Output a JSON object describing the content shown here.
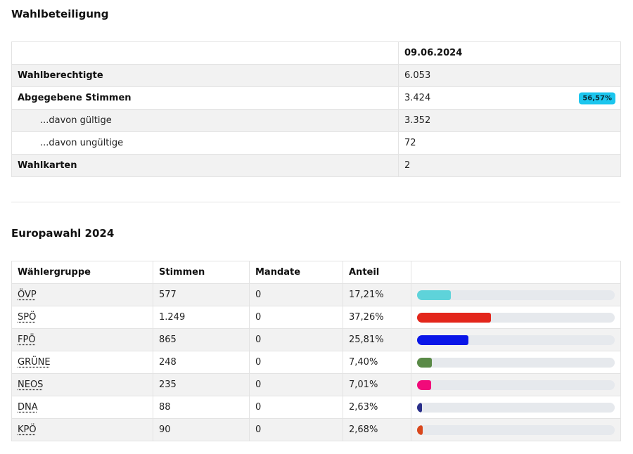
{
  "turnout": {
    "title": "Wahlbeteiligung",
    "date": "09.06.2024",
    "rows": [
      {
        "label": "Wahlberechtigte",
        "value": "6.053"
      },
      {
        "label": "Abgegebene Stimmen",
        "value": "3.424",
        "badge": "56,57%"
      },
      {
        "label": "...davon gültige",
        "value": "3.352"
      },
      {
        "label": "...davon ungültige",
        "value": "72"
      },
      {
        "label": "Wahlkarten",
        "value": "2"
      }
    ]
  },
  "results": {
    "title": "Europawahl 2024",
    "headers": [
      "Wählergruppe",
      "Stimmen",
      "Mandate",
      "Anteil",
      ""
    ],
    "rows": [
      {
        "party": "ÖVP",
        "votes": "577",
        "seats": "0",
        "share": "17,21%",
        "share_value": 17.21,
        "color": "#5ed3da"
      },
      {
        "party": "SPÖ",
        "votes": "1.249",
        "seats": "0",
        "share": "37,26%",
        "share_value": 37.26,
        "color": "#e3261b"
      },
      {
        "party": "FPÖ",
        "votes": "865",
        "seats": "0",
        "share": "25,81%",
        "share_value": 25.81,
        "color": "#0a16e8"
      },
      {
        "party": "GRÜNE",
        "votes": "248",
        "seats": "0",
        "share": "7,40%",
        "share_value": 7.4,
        "color": "#5a8a47"
      },
      {
        "party": "NEOS",
        "votes": "235",
        "seats": "0",
        "share": "7,01%",
        "share_value": 7.01,
        "color": "#f10a7a"
      },
      {
        "party": "DNA",
        "votes": "88",
        "seats": "0",
        "share": "2,63%",
        "share_value": 2.63,
        "color": "#2a2f8a"
      },
      {
        "party": "KPÖ",
        "votes": "90",
        "seats": "0",
        "share": "2,68%",
        "share_value": 2.68,
        "color": "#d9471c"
      }
    ]
  }
}
